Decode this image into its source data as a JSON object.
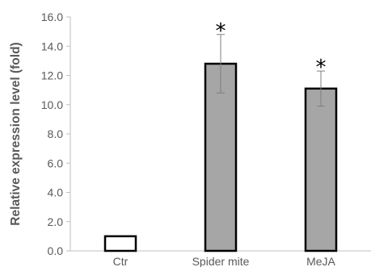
{
  "chart_data": {
    "type": "bar",
    "title": "",
    "xlabel": "",
    "ylabel": "Relative expression level (fold)",
    "ylim": [
      0,
      16
    ],
    "yticks": [
      "0.0",
      "2.0",
      "4.0",
      "6.0",
      "8.0",
      "10.0",
      "12.0",
      "14.0",
      "16.0"
    ],
    "categories": [
      "Ctr",
      "Spider mite",
      "MeJA"
    ],
    "values": [
      1.0,
      12.8,
      11.1
    ],
    "errors": [
      0.05,
      2.0,
      1.2
    ],
    "significance": [
      "",
      "*",
      "*"
    ],
    "grid": false,
    "bar_colors": [
      "#ffffff",
      "#a6a6a6",
      "#a6a6a6"
    ],
    "bar_edge_color": "#000000",
    "error_bar_color": "#7f7f7f",
    "axis_color": "#bfbfbf"
  }
}
